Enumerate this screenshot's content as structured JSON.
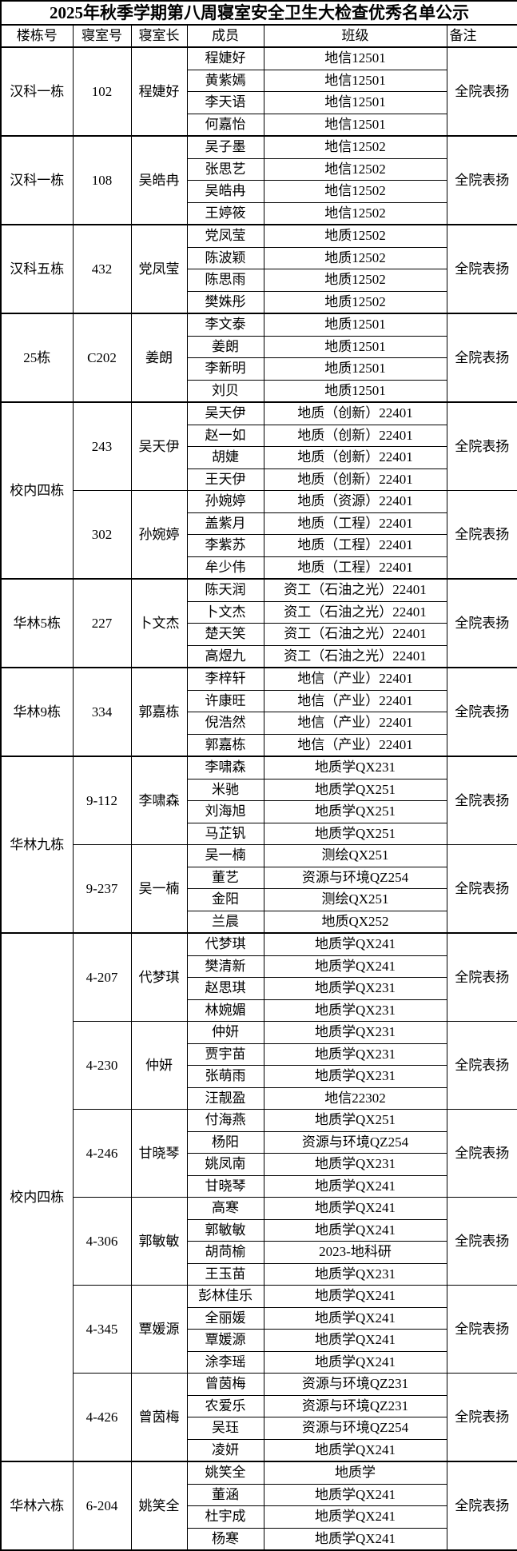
{
  "title": "2025年秋季学期第八周寝室安全卫生大检查优秀名单公示",
  "columns": [
    "楼栋号",
    "寝室号",
    "寝室长",
    "成员",
    "班级",
    "备注"
  ],
  "buildings": [
    {
      "name": "汉科一栋",
      "rooms": [
        {
          "room": "102",
          "leader": "程婕好",
          "remark": "全院表扬",
          "members": [
            {
              "name": "程婕好",
              "class": "地信12501"
            },
            {
              "name": "黄紫嫣",
              "class": "地信12501"
            },
            {
              "name": "李天语",
              "class": "地信12501"
            },
            {
              "name": "何嘉怡",
              "class": "地信12501"
            }
          ]
        }
      ]
    },
    {
      "name": "汉科一栋",
      "rooms": [
        {
          "room": "108",
          "leader": "吴皓冉",
          "remark": "全院表扬",
          "members": [
            {
              "name": "吴子墨",
              "class": "地信12502"
            },
            {
              "name": "张思艺",
              "class": "地信12502"
            },
            {
              "name": "吴皓冉",
              "class": "地信12502"
            },
            {
              "name": "王婷筱",
              "class": "地信12502"
            }
          ]
        }
      ]
    },
    {
      "name": "汉科五栋",
      "rooms": [
        {
          "room": "432",
          "leader": "党凤莹",
          "remark": "全院表扬",
          "members": [
            {
              "name": "党凤莹",
              "class": "地质12502"
            },
            {
              "name": "陈波颖",
              "class": "地质12502"
            },
            {
              "name": "陈思雨",
              "class": "地质12502"
            },
            {
              "name": "樊姝彤",
              "class": "地质12502"
            }
          ]
        }
      ]
    },
    {
      "name": "25栋",
      "rooms": [
        {
          "room": "C202",
          "leader": "姜朗",
          "remark": "全院表扬",
          "members": [
            {
              "name": "李文泰",
              "class": "地质12501"
            },
            {
              "name": "姜朗",
              "class": "地质12501"
            },
            {
              "name": "李新明",
              "class": "地质12501"
            },
            {
              "name": "刘贝",
              "class": "地质12501"
            }
          ]
        }
      ]
    },
    {
      "name": "校内四栋",
      "rooms": [
        {
          "room": "243",
          "leader": "吴天伊",
          "remark": "全院表扬",
          "members": [
            {
              "name": "吴天伊",
              "class": "地质（创新）22401"
            },
            {
              "name": "赵一如",
              "class": "地质（创新）22401"
            },
            {
              "name": "胡婕",
              "class": "地质（创新）22401"
            },
            {
              "name": "王天伊",
              "class": "地质（创新）22401"
            }
          ]
        },
        {
          "room": "302",
          "leader": "孙婉婷",
          "remark": "全院表扬",
          "members": [
            {
              "name": "孙婉婷",
              "class": "地质（资源）22401"
            },
            {
              "name": "盖紫月",
              "class": "地质（工程）22401"
            },
            {
              "name": "李紫苏",
              "class": "地质（工程）22401"
            },
            {
              "name": "牟少伟",
              "class": "地质（工程）22401"
            }
          ]
        }
      ]
    },
    {
      "name": "华林5栋",
      "rooms": [
        {
          "room": "227",
          "leader": "卜文杰",
          "remark": "全院表扬",
          "members": [
            {
              "name": "陈天润",
              "class": "资工（石油之光）22401"
            },
            {
              "name": "卜文杰",
              "class": "资工（石油之光）22401"
            },
            {
              "name": "楚天笑",
              "class": "资工（石油之光）22401"
            },
            {
              "name": "高煜九",
              "class": "资工（石油之光）22401"
            }
          ]
        }
      ]
    },
    {
      "name": "华林9栋",
      "rooms": [
        {
          "room": "334",
          "leader": "郭嘉栋",
          "remark": "全院表扬",
          "members": [
            {
              "name": "李梓轩",
              "class": "地信（产业）22401"
            },
            {
              "name": "许康旺",
              "class": "地信（产业）22401"
            },
            {
              "name": "倪浩然",
              "class": "地信（产业）22401"
            },
            {
              "name": "郭嘉栋",
              "class": "地信（产业）22401"
            }
          ]
        }
      ]
    },
    {
      "name": "华林九栋",
      "rooms": [
        {
          "room": "9-112",
          "leader": "李啸森",
          "remark": "全院表扬",
          "members": [
            {
              "name": "李啸森",
              "class": "地质学QX231"
            },
            {
              "name": "米驰",
              "class": "地质学QX251"
            },
            {
              "name": "刘海旭",
              "class": "地质学QX251"
            },
            {
              "name": "马芷钒",
              "class": "地质学QX251"
            }
          ]
        },
        {
          "room": "9-237",
          "leader": "吴一楠",
          "remark": "全院表扬",
          "members": [
            {
              "name": "吴一楠",
              "class": "测绘QX251"
            },
            {
              "name": "董艺",
              "class": "资源与环境QZ254"
            },
            {
              "name": "金阳",
              "class": "测绘QX251"
            },
            {
              "name": "兰晨",
              "class": "地质QX252"
            }
          ]
        }
      ]
    },
    {
      "name": "校内四栋",
      "rooms": [
        {
          "room": "4-207",
          "leader": "代梦琪",
          "remark": "全院表扬",
          "members": [
            {
              "name": "代梦琪",
              "class": "地质学QX241"
            },
            {
              "name": "樊清新",
              "class": "地质学QX241"
            },
            {
              "name": "赵思琪",
              "class": "地质学QX231"
            },
            {
              "name": "林婉媚",
              "class": "地质学QX231"
            }
          ]
        },
        {
          "room": "4-230",
          "leader": "仲妍",
          "remark": "全院表扬",
          "members": [
            {
              "name": "仲妍",
              "class": "地质学QX231"
            },
            {
              "name": "贾宇苗",
              "class": "地质学QX231"
            },
            {
              "name": "张萌雨",
              "class": "地质学QX231"
            },
            {
              "name": "汪靓盈",
              "class": "地信22302"
            }
          ]
        },
        {
          "room": "4-246",
          "leader": "甘晓琴",
          "remark": "全院表扬",
          "members": [
            {
              "name": "付海燕",
              "class": "地质学QX251"
            },
            {
              "name": "杨阳",
              "class": "资源与环境QZ254"
            },
            {
              "name": "姚凤南",
              "class": "地质学QX231"
            },
            {
              "name": "甘晓琴",
              "class": "地质学QX241"
            }
          ]
        },
        {
          "room": "4-306",
          "leader": "郭敏敏",
          "remark": "全院表扬",
          "members": [
            {
              "name": "高寒",
              "class": "地质学QX241"
            },
            {
              "name": "郭敏敏",
              "class": "地质学QX241"
            },
            {
              "name": "胡苘榆",
              "class": "2023-地科研"
            },
            {
              "name": "王玉苗",
              "class": "地质学QX231"
            }
          ]
        },
        {
          "room": "4-345",
          "leader": "覃媛源",
          "remark": "全院表扬",
          "members": [
            {
              "name": "彭林佳乐",
              "class": "地质学QX241"
            },
            {
              "name": "全丽媛",
              "class": "地质学QX241"
            },
            {
              "name": "覃媛源",
              "class": "地质学QX241"
            },
            {
              "name": "涂李瑶",
              "class": "地质学QX241"
            }
          ]
        },
        {
          "room": "4-426",
          "leader": "曾茵梅",
          "remark": "全院表扬",
          "members": [
            {
              "name": "曾茵梅",
              "class": "资源与环境QZ231"
            },
            {
              "name": "农爱乐",
              "class": "资源与环境QZ231"
            },
            {
              "name": "吴珏",
              "class": "资源与环境QZ254"
            },
            {
              "name": "凌妍",
              "class": "地质学QX241"
            }
          ]
        }
      ]
    },
    {
      "name": "华林六栋",
      "rooms": [
        {
          "room": "6-204",
          "leader": "姚笑全",
          "remark": "全院表扬",
          "members": [
            {
              "name": "姚笑全",
              "class": "地质学"
            },
            {
              "name": "董涵",
              "class": "地质学QX241"
            },
            {
              "name": "杜宇成",
              "class": "地质学QX241"
            },
            {
              "name": "杨寒",
              "class": "地质学QX241"
            }
          ]
        }
      ]
    }
  ]
}
